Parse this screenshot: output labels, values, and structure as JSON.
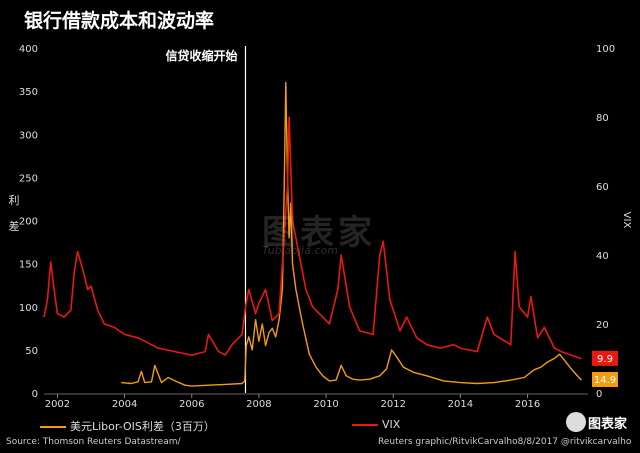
{
  "title": "银行借款成本和波动率",
  "watermark": "图表家",
  "watermark_sub": "Tubiaojia.com",
  "logo_text": "图表家",
  "footer": {
    "source": "Source: Thomson Reuters Datastream/",
    "credit": "Reuters graphic/RitvikCarvalho8/8/2017 @ritvikcarvalho"
  },
  "chart_data": {
    "type": "line",
    "annotation": "信贷收缩开始",
    "annotation_x": 2007.6,
    "xlim": [
      2001.6,
      2017.8
    ],
    "x_ticks": [
      "2002",
      "2004",
      "2006",
      "2008",
      "2010",
      "2012",
      "2014",
      "2016"
    ],
    "x_tick_values": [
      2002,
      2004,
      2006,
      2008,
      2010,
      2012,
      2014,
      2016
    ],
    "left_axis": {
      "label": "利差",
      "ylim": [
        0,
        400
      ],
      "ticks": [
        "0",
        "50",
        "100",
        "150",
        "200",
        "250",
        "300",
        "350",
        "400"
      ]
    },
    "right_axis": {
      "label": "VIX",
      "ylim": [
        0,
        100
      ],
      "ticks": [
        "0",
        "20",
        "40",
        "60",
        "80",
        "100"
      ]
    },
    "grid": false,
    "legend_position": "bottom",
    "series": [
      {
        "name": "美元Libor-OIS利差（3百万）",
        "axis": "left",
        "color": "#f39c12",
        "end_label": "14.9",
        "x": [
          2003.9,
          2004.2,
          2004.4,
          2004.5,
          2004.6,
          2004.8,
          2004.9,
          2005.1,
          2005.3,
          2005.5,
          2005.8,
          2006.0,
          2006.5,
          2007.0,
          2007.5,
          2007.58,
          2007.62,
          2007.7,
          2007.8,
          2007.9,
          2008.0,
          2008.1,
          2008.2,
          2008.3,
          2008.4,
          2008.5,
          2008.6,
          2008.7,
          2008.75,
          2008.8,
          2008.85,
          2008.9,
          2008.95,
          2009.0,
          2009.1,
          2009.2,
          2009.3,
          2009.5,
          2009.7,
          2009.9,
          2010.1,
          2010.3,
          2010.45,
          2010.6,
          2010.8,
          2011.0,
          2011.3,
          2011.6,
          2011.8,
          2011.95,
          2012.1,
          2012.3,
          2012.6,
          2013.0,
          2013.5,
          2014.0,
          2014.5,
          2015.0,
          2015.5,
          2015.9,
          2016.2,
          2016.4,
          2016.6,
          2016.8,
          2016.95,
          2017.1,
          2017.3,
          2017.6
        ],
        "values": [
          12,
          11,
          13,
          25,
          12,
          13,
          32,
          12,
          18,
          14,
          9,
          8,
          9,
          10,
          11,
          14,
          55,
          65,
          50,
          85,
          60,
          80,
          55,
          70,
          75,
          65,
          85,
          120,
          230,
          360,
          250,
          180,
          220,
          150,
          120,
          100,
          80,
          45,
          30,
          20,
          14,
          15,
          32,
          20,
          16,
          15,
          16,
          20,
          28,
          50,
          42,
          30,
          24,
          20,
          14,
          12,
          11,
          12,
          15,
          18,
          27,
          30,
          36,
          40,
          45,
          38,
          28,
          14.9
        ]
      },
      {
        "name": "VIX",
        "axis": "right",
        "color": "#e8190f",
        "end_label": "9.9",
        "x": [
          2001.6,
          2001.7,
          2001.8,
          2001.9,
          2002.0,
          2002.2,
          2002.4,
          2002.5,
          2002.6,
          2002.75,
          2002.9,
          2003.0,
          2003.2,
          2003.4,
          2003.7,
          2004.0,
          2004.4,
          2004.8,
          2005.0,
          2005.5,
          2006.0,
          2006.4,
          2006.5,
          2006.8,
          2007.0,
          2007.2,
          2007.5,
          2007.6,
          2007.7,
          2007.9,
          2008.0,
          2008.2,
          2008.4,
          2008.6,
          2008.75,
          2008.85,
          2008.9,
          2009.0,
          2009.2,
          2009.4,
          2009.6,
          2009.9,
          2010.1,
          2010.35,
          2010.45,
          2010.7,
          2011.0,
          2011.4,
          2011.6,
          2011.7,
          2011.9,
          2012.2,
          2012.4,
          2012.7,
          2013.0,
          2013.4,
          2013.8,
          2014.0,
          2014.5,
          2014.8,
          2015.0,
          2015.5,
          2015.63,
          2015.75,
          2016.0,
          2016.1,
          2016.3,
          2016.5,
          2016.8,
          2017.0,
          2017.3,
          2017.6
        ],
        "values": [
          22,
          27,
          38,
          30,
          23,
          22,
          24,
          35,
          41,
          36,
          30,
          31,
          24,
          20,
          19,
          17,
          16,
          14,
          13,
          12,
          11,
          12,
          17,
          12,
          11,
          14,
          17,
          25,
          30,
          23,
          26,
          30,
          21,
          23,
          45,
          60,
          80,
          50,
          40,
          30,
          25,
          22,
          20,
          30,
          40,
          25,
          18,
          17,
          40,
          44,
          27,
          18,
          22,
          16,
          14,
          13,
          14,
          13,
          12,
          22,
          17,
          14,
          41,
          25,
          22,
          28,
          16,
          19,
          13,
          12,
          11,
          9.9
        ]
      }
    ]
  }
}
